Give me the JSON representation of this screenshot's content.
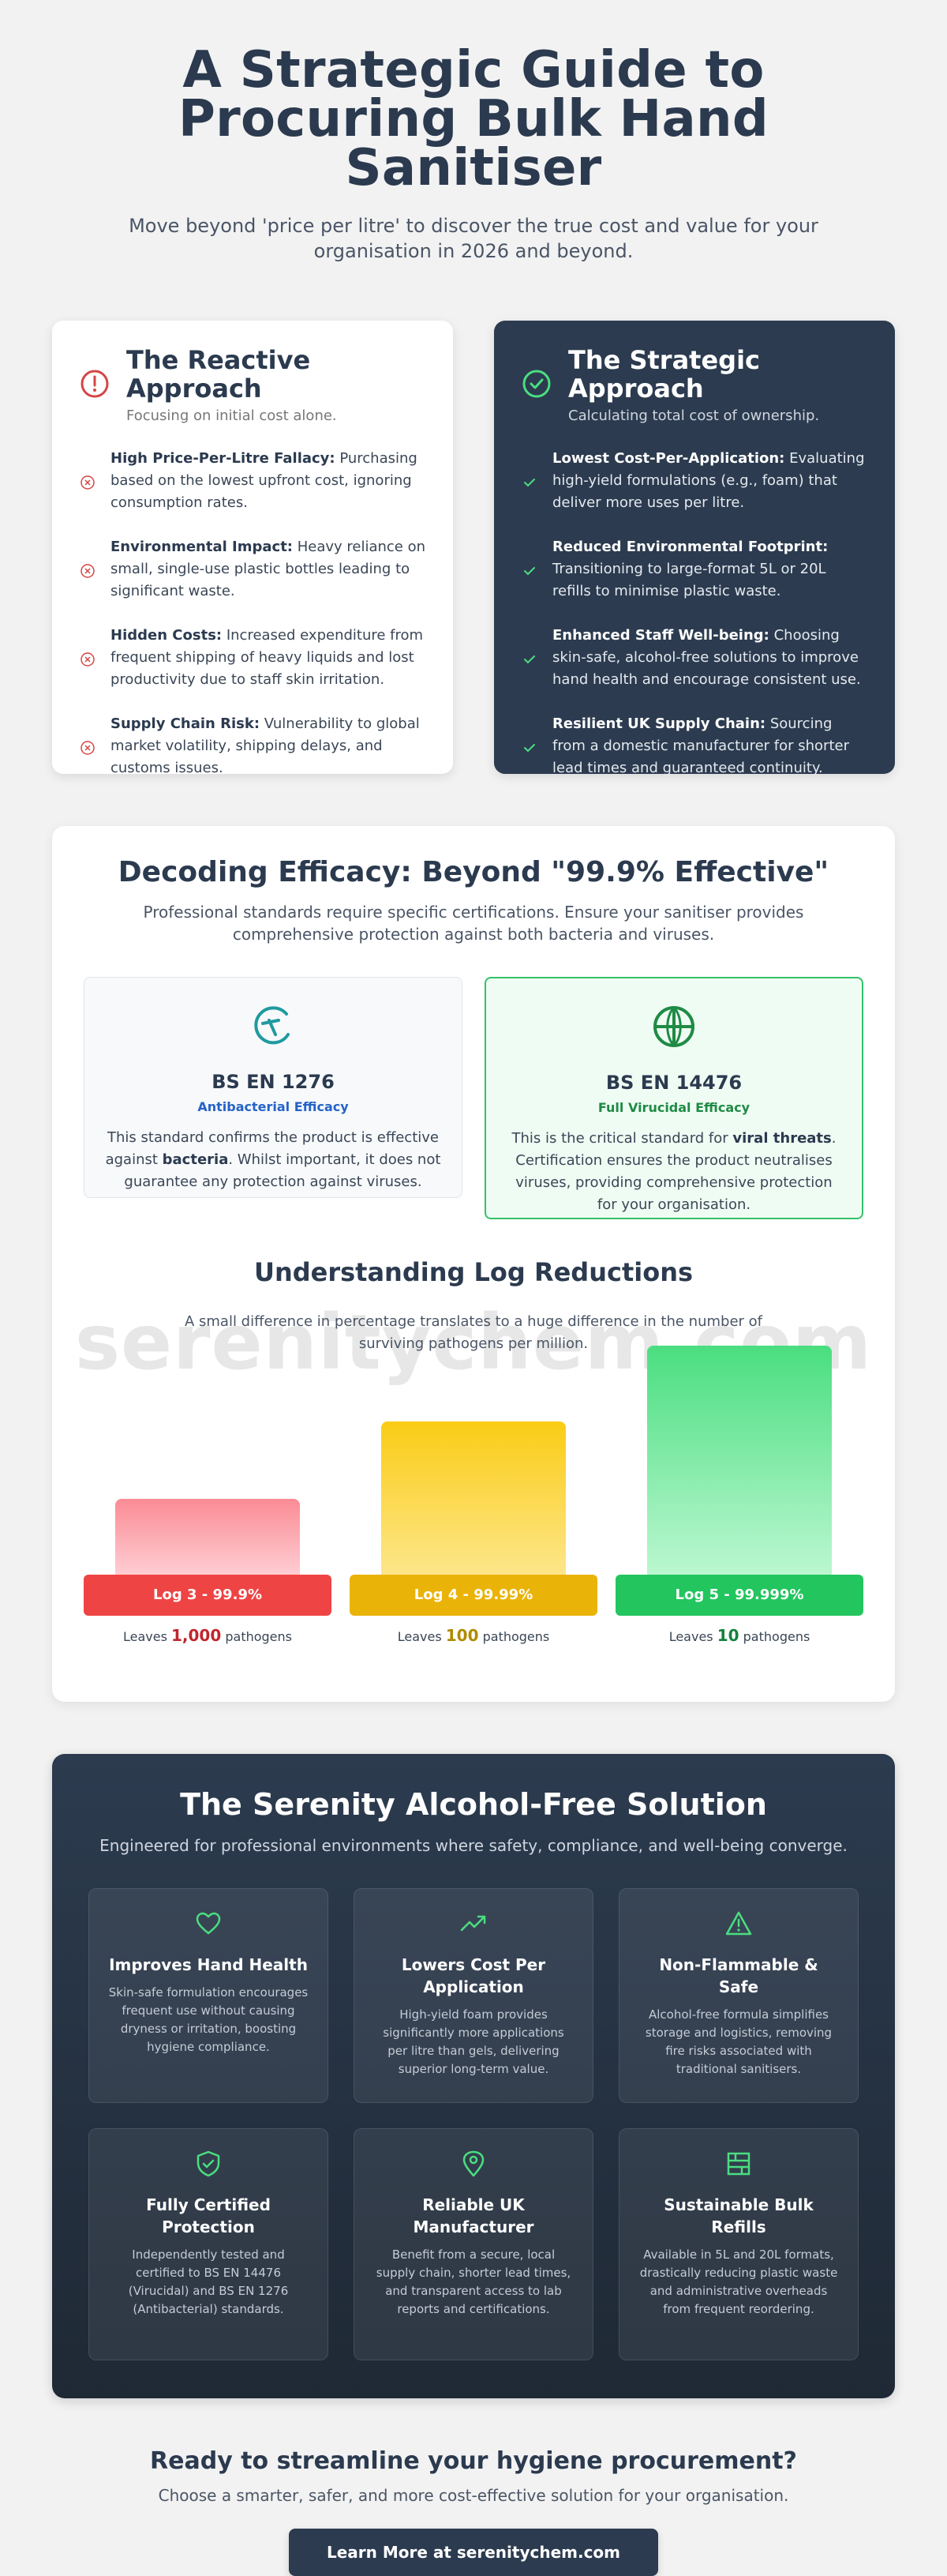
{
  "hero": {
    "title": "A Strategic Guide to Procuring Bulk Hand Sanitiser",
    "subtitle": "Move beyond 'price per litre' to discover the true cost and value for your organisation in 2026 and beyond."
  },
  "reactive": {
    "title": "The Reactive Approach",
    "subtitle": "Focusing on initial cost alone.",
    "icon": "alert-circle-icon",
    "items": [
      {
        "bold": "High Price-Per-Litre Fallacy:",
        "text": " Purchasing based on the lowest upfront cost, ignoring consumption rates."
      },
      {
        "bold": "Environmental Impact:",
        "text": " Heavy reliance on small, single-use plastic bottles leading to significant waste."
      },
      {
        "bold": "Hidden Costs:",
        "text": " Increased expenditure from frequent shipping of heavy liquids and lost productivity due to staff skin irritation."
      },
      {
        "bold": "Supply Chain Risk:",
        "text": " Vulnerability to global market volatility, shipping delays, and customs issues."
      }
    ]
  },
  "strategic": {
    "title": "The Strategic Approach",
    "subtitle": "Calculating total cost of ownership.",
    "icon": "check-circle-icon",
    "items": [
      {
        "bold": "Lowest Cost-Per-Application:",
        "text": " Evaluating high-yield formulations (e.g., foam) that deliver more uses per litre."
      },
      {
        "bold": "Reduced Environmental Footprint:",
        "text": " Transitioning to large-format 5L or 20L refills to minimise plastic waste."
      },
      {
        "bold": "Enhanced Staff Well-being:",
        "text": " Choosing skin-safe, alcohol-free solutions to improve hand health and encourage consistent use."
      },
      {
        "bold": "Resilient UK Supply Chain:",
        "text": " Sourcing from a domestic manufacturer for shorter lead times and guaranteed continuity."
      }
    ]
  },
  "efficacy": {
    "title": "Decoding Efficacy: Beyond \"99.9% Effective\"",
    "intro": "Professional standards require specific certifications. Ensure your sanitiser provides comprehensive protection against both bacteria and viruses.",
    "standards": [
      {
        "code": "BS EN 1276",
        "tag": "Antibacterial Efficacy",
        "desc_a": "This standard confirms the product is effective against ",
        "desc_b": "bacteria",
        "desc_c": ". Whilst important, it does not guarantee any protection against viruses."
      },
      {
        "code": "BS EN 14476",
        "tag": "Full Virucidal Efficacy",
        "desc_a": "This is the critical standard for ",
        "desc_b": "viral threats",
        "desc_c": ". Certification ensures the product neutralises viruses, providing comprehensive protection for your organisation."
      }
    ],
    "log_title": "Understanding Log Reductions",
    "log_intro": "A small difference in percentage translates to a huge difference in the number of surviving pathogens per million.",
    "watermark": "serenitychem.com",
    "bars": [
      {
        "label": "Log 3 - 99.9%",
        "leaves_prefix": "Leaves ",
        "count": "1,000",
        "leaves_suffix": " pathogens",
        "level": 0.33,
        "color": "#ef4444"
      },
      {
        "label": "Log 4 - 99.99%",
        "leaves_prefix": "Leaves ",
        "count": "100",
        "leaves_suffix": " pathogens",
        "level": 0.67,
        "color": "#eab308"
      },
      {
        "label": "Log 5 - 99.999%",
        "leaves_prefix": "Leaves ",
        "count": "10",
        "leaves_suffix": " pathogens",
        "level": 1.0,
        "color": "#22c55e"
      }
    ]
  },
  "solution": {
    "title": "The Serenity Alcohol-Free Solution",
    "intro": "Engineered for professional environments where safety, compliance, and well-being converge.",
    "features": [
      {
        "icon": "heart-icon",
        "title": "Improves Hand Health",
        "desc": "Skin-safe formulation encourages frequent use without causing dryness or irritation, boosting hygiene compliance."
      },
      {
        "icon": "trending-up-icon",
        "title": "Lowers Cost Per Application",
        "desc": "High-yield foam provides significantly more applications per litre than gels, delivering superior long-term value."
      },
      {
        "icon": "warning-triangle-icon",
        "title": "Non-Flammable & Safe",
        "desc": "Alcohol-free formula simplifies storage and logistics, removing fire risks associated with traditional sanitisers."
      },
      {
        "icon": "shield-check-icon",
        "title": "Fully Certified Protection",
        "desc": "Independently tested and certified to BS EN 14476 (Virucidal) and BS EN 1276 (Antibacterial) standards."
      },
      {
        "icon": "map-pin-icon",
        "title": "Reliable UK Manufacturer",
        "desc": "Benefit from a secure, local supply chain, shorter lead times, and transparent access to lab reports and certifications."
      },
      {
        "icon": "container-icon",
        "title": "Sustainable Bulk Refills",
        "desc": "Available in 5L and 20L formats, drastically reducing plastic waste and administrative overheads from frequent reordering."
      }
    ]
  },
  "cta": {
    "title": "Ready to streamline your hygiene procurement?",
    "subtitle": "Choose a smarter, safer, and more cost-effective solution for your organisation.",
    "button": "Learn More at serenitychem.com"
  }
}
